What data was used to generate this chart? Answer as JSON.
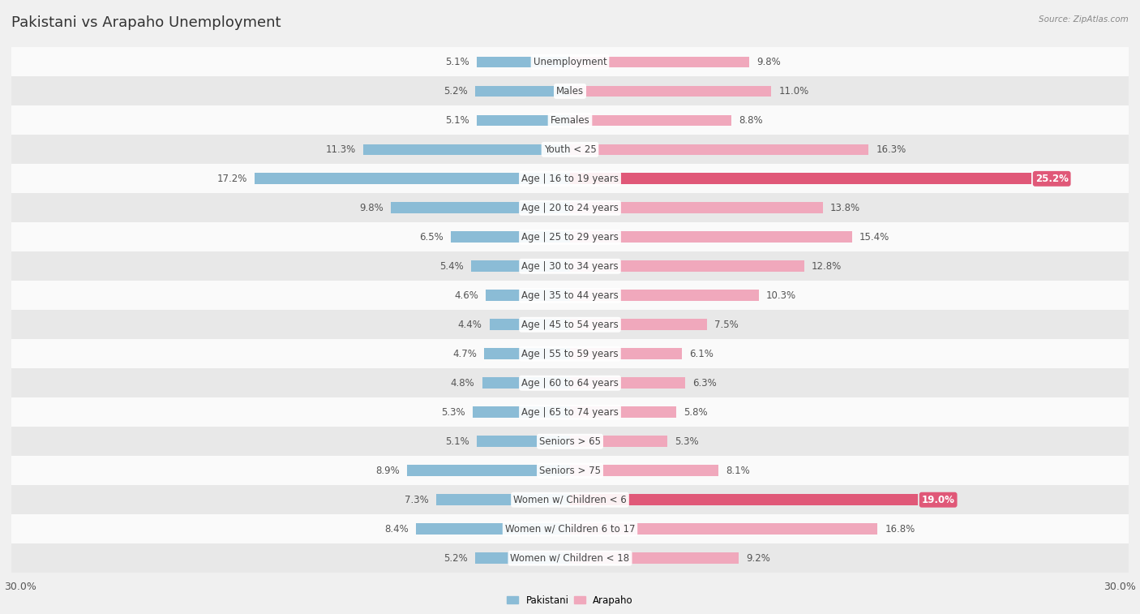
{
  "title": "Pakistani vs Arapaho Unemployment",
  "source": "Source: ZipAtlas.com",
  "categories": [
    "Unemployment",
    "Males",
    "Females",
    "Youth < 25",
    "Age | 16 to 19 years",
    "Age | 20 to 24 years",
    "Age | 25 to 29 years",
    "Age | 30 to 34 years",
    "Age | 35 to 44 years",
    "Age | 45 to 54 years",
    "Age | 55 to 59 years",
    "Age | 60 to 64 years",
    "Age | 65 to 74 years",
    "Seniors > 65",
    "Seniors > 75",
    "Women w/ Children < 6",
    "Women w/ Children 6 to 17",
    "Women w/ Children < 18"
  ],
  "pakistani": [
    5.1,
    5.2,
    5.1,
    11.3,
    17.2,
    9.8,
    6.5,
    5.4,
    4.6,
    4.4,
    4.7,
    4.8,
    5.3,
    5.1,
    8.9,
    7.3,
    8.4,
    5.2
  ],
  "arapaho": [
    9.8,
    11.0,
    8.8,
    16.3,
    25.2,
    13.8,
    15.4,
    12.8,
    10.3,
    7.5,
    6.1,
    6.3,
    5.8,
    5.3,
    8.1,
    19.0,
    16.8,
    9.2
  ],
  "pakistani_color": "#8bbcd6",
  "arapaho_color": "#f0a8bc",
  "arapaho_highlight_color": "#e05878",
  "background_color": "#f0f0f0",
  "row_color_light": "#fafafa",
  "row_color_dark": "#e8e8e8",
  "title_fontsize": 13,
  "label_fontsize": 8.5,
  "value_fontsize": 8.5,
  "tick_fontsize": 9,
  "max_val": 30.0,
  "highlight_indices": [
    4,
    15
  ]
}
